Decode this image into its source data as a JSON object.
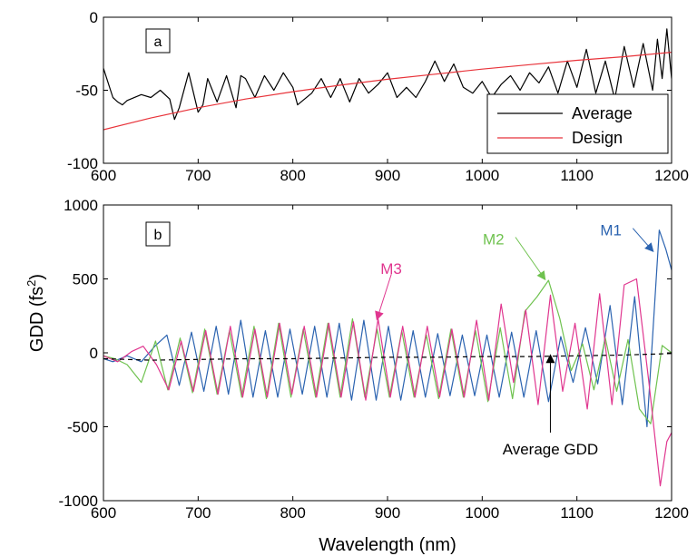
{
  "chart_data": [
    {
      "id": "a",
      "type": "line",
      "panel_label": "a",
      "title": "",
      "xlabel": "",
      "ylabel": "",
      "xlim": [
        600,
        1200
      ],
      "ylim": [
        -100,
        0
      ],
      "xticks": [
        600,
        700,
        800,
        900,
        1000,
        1100,
        1200
      ],
      "yticks": [
        0,
        -50,
        -100
      ],
      "xtick_labels": [
        "600",
        "700",
        "800",
        "900",
        "1000",
        "1100",
        "1200"
      ],
      "ytick_labels": [
        "0",
        "-50",
        "-100"
      ],
      "legend": {
        "placement": "bottom-right",
        "entries": [
          "Average",
          "Design"
        ]
      },
      "grid": false,
      "series": [
        {
          "name": "Average",
          "color": "#000000",
          "x": [
            600,
            605,
            610,
            615,
            620,
            625,
            640,
            650,
            660,
            670,
            675,
            680,
            690,
            700,
            705,
            710,
            720,
            730,
            740,
            745,
            750,
            760,
            770,
            780,
            790,
            800,
            805,
            820,
            830,
            840,
            850,
            860,
            870,
            880,
            890,
            900,
            910,
            920,
            930,
            940,
            950,
            960,
            970,
            980,
            990,
            1000,
            1010,
            1020,
            1030,
            1040,
            1050,
            1060,
            1070,
            1080,
            1090,
            1100,
            1110,
            1120,
            1130,
            1140,
            1150,
            1160,
            1170,
            1180,
            1185,
            1190,
            1195,
            1200
          ],
          "values": [
            -35,
            -45,
            -55,
            -58,
            -60,
            -57,
            -53,
            -55,
            -50,
            -56,
            -70,
            -62,
            -38,
            -65,
            -60,
            -42,
            -58,
            -40,
            -62,
            -40,
            -42,
            -55,
            -40,
            -50,
            -38,
            -48,
            -60,
            -52,
            -42,
            -55,
            -42,
            -58,
            -42,
            -52,
            -46,
            -38,
            -55,
            -48,
            -55,
            -44,
            -30,
            -44,
            -32,
            -48,
            -52,
            -44,
            -55,
            -46,
            -40,
            -50,
            -38,
            -45,
            -34,
            -52,
            -30,
            -48,
            -22,
            -52,
            -30,
            -56,
            -20,
            -48,
            -18,
            -50,
            -15,
            -42,
            -8,
            -42
          ]
        },
        {
          "name": "Design",
          "color": "#e8333a",
          "x": [
            600,
            650,
            700,
            750,
            800,
            850,
            900,
            950,
            1000,
            1050,
            1100,
            1150,
            1200
          ],
          "values": [
            -77,
            -69,
            -62,
            -56,
            -51,
            -46.5,
            -42.5,
            -39,
            -35.5,
            -32.5,
            -29.5,
            -27,
            -24
          ]
        }
      ]
    },
    {
      "id": "b",
      "type": "line",
      "panel_label": "b",
      "title": "",
      "xlabel": "Wavelength (nm)",
      "ylabel": "GDD (fs²)",
      "ylabel_base": "GDD (fs",
      "ylabel_sup": "2",
      "ylabel_tail": ")",
      "xlim": [
        600,
        1200
      ],
      "ylim": [
        -1000,
        1000
      ],
      "xticks": [
        600,
        700,
        800,
        900,
        1000,
        1100,
        1200
      ],
      "yticks": [
        1000,
        500,
        0,
        -500,
        -1000
      ],
      "xtick_labels": [
        "600",
        "700",
        "800",
        "900",
        "1000",
        "1100",
        "1200"
      ],
      "ytick_labels": [
        "1000",
        "500",
        "0",
        "-500",
        "-1000"
      ],
      "grid": false,
      "series": [
        {
          "name": "M1",
          "color": "#2b63b0",
          "x": [
            600,
            610,
            625,
            640,
            655,
            667,
            680,
            693,
            706,
            719,
            732,
            745,
            758,
            771,
            784,
            797,
            810,
            823,
            836,
            849,
            862,
            875,
            888,
            901,
            914,
            927,
            940,
            953,
            966,
            979,
            992,
            1005,
            1018,
            1031,
            1044,
            1057,
            1070,
            1083,
            1096,
            1109,
            1122,
            1135,
            1148,
            1161,
            1174,
            1187,
            1194,
            1200
          ],
          "values": [
            -40,
            -60,
            -20,
            -60,
            50,
            120,
            -220,
            140,
            -260,
            180,
            -280,
            220,
            -300,
            150,
            -300,
            160,
            -280,
            180,
            -300,
            200,
            -320,
            220,
            -320,
            180,
            -320,
            150,
            -300,
            130,
            -290,
            120,
            -290,
            120,
            -300,
            140,
            -300,
            150,
            -330,
            110,
            -200,
            170,
            -210,
            320,
            -350,
            380,
            -500,
            830,
            700,
            560
          ]
        },
        {
          "name": "M2",
          "color": "#6fc24f",
          "x": [
            600,
            612,
            625,
            640,
            655,
            668,
            681,
            694,
            707,
            720,
            733,
            746,
            759,
            772,
            785,
            798,
            811,
            824,
            837,
            850,
            863,
            876,
            889,
            902,
            915,
            928,
            941,
            954,
            967,
            980,
            993,
            1006,
            1019,
            1032,
            1045,
            1058,
            1070,
            1082,
            1094,
            1106,
            1118,
            1130,
            1142,
            1154,
            1166,
            1178,
            1190,
            1200
          ],
          "values": [
            -20,
            -40,
            -80,
            -200,
            80,
            -250,
            100,
            -270,
            160,
            -280,
            150,
            -300,
            180,
            -310,
            200,
            -300,
            160,
            -300,
            200,
            -300,
            230,
            -300,
            160,
            -300,
            150,
            -300,
            120,
            -310,
            160,
            -300,
            150,
            -330,
            170,
            -310,
            280,
            380,
            490,
            230,
            -120,
            60,
            -250,
            100,
            -260,
            90,
            -380,
            -480,
            50,
            0
          ]
        },
        {
          "name": "M3",
          "color": "#e0368f",
          "x": [
            600,
            615,
            630,
            642,
            656,
            669,
            682,
            695,
            708,
            721,
            734,
            747,
            760,
            773,
            786,
            799,
            812,
            825,
            838,
            851,
            864,
            877,
            890,
            903,
            916,
            929,
            942,
            955,
            968,
            981,
            994,
            1007,
            1020,
            1033,
            1046,
            1059,
            1072,
            1085,
            1098,
            1111,
            1124,
            1137,
            1150,
            1163,
            1176,
            1188,
            1195,
            1200
          ],
          "values": [
            -20,
            -60,
            10,
            45,
            -80,
            -250,
            80,
            -260,
            150,
            -280,
            180,
            -300,
            160,
            -300,
            200,
            -280,
            180,
            -300,
            200,
            -300,
            210,
            -320,
            230,
            -300,
            180,
            -300,
            180,
            -300,
            160,
            -300,
            220,
            -320,
            330,
            -200,
            290,
            -350,
            390,
            -260,
            200,
            -380,
            400,
            -350,
            460,
            500,
            -200,
            -900,
            -600,
            -540
          ]
        },
        {
          "name": "Average GDD",
          "color": "#000000",
          "dashed": true,
          "x": [
            600,
            650,
            700,
            750,
            800,
            850,
            900,
            950,
            1000,
            1050,
            1100,
            1150,
            1200
          ],
          "values": [
            -40,
            -50,
            -45,
            -40,
            -40,
            -35,
            -30,
            -30,
            -25,
            -25,
            -20,
            -15,
            -5
          ]
        }
      ],
      "annotations": [
        {
          "text": "M1",
          "color": "#2b63b0",
          "text_x": 1138,
          "text_y": 830,
          "arrow_to_x": 1180,
          "arrow_to_y": 690
        },
        {
          "text": "M2",
          "color": "#6fc24f",
          "text_x": 1014,
          "text_y": 770,
          "arrow_to_x": 1066,
          "arrow_to_y": 500
        },
        {
          "text": "M3",
          "color": "#e0368f",
          "text_x": 906,
          "text_y": 570,
          "arrow_to_x": 889,
          "arrow_to_y": 230
        },
        {
          "text": "Average GDD",
          "color": "#000000",
          "text_x": 1072,
          "text_y": -650,
          "arrow_to_x": 1072,
          "arrow_to_y": -20
        }
      ]
    }
  ]
}
